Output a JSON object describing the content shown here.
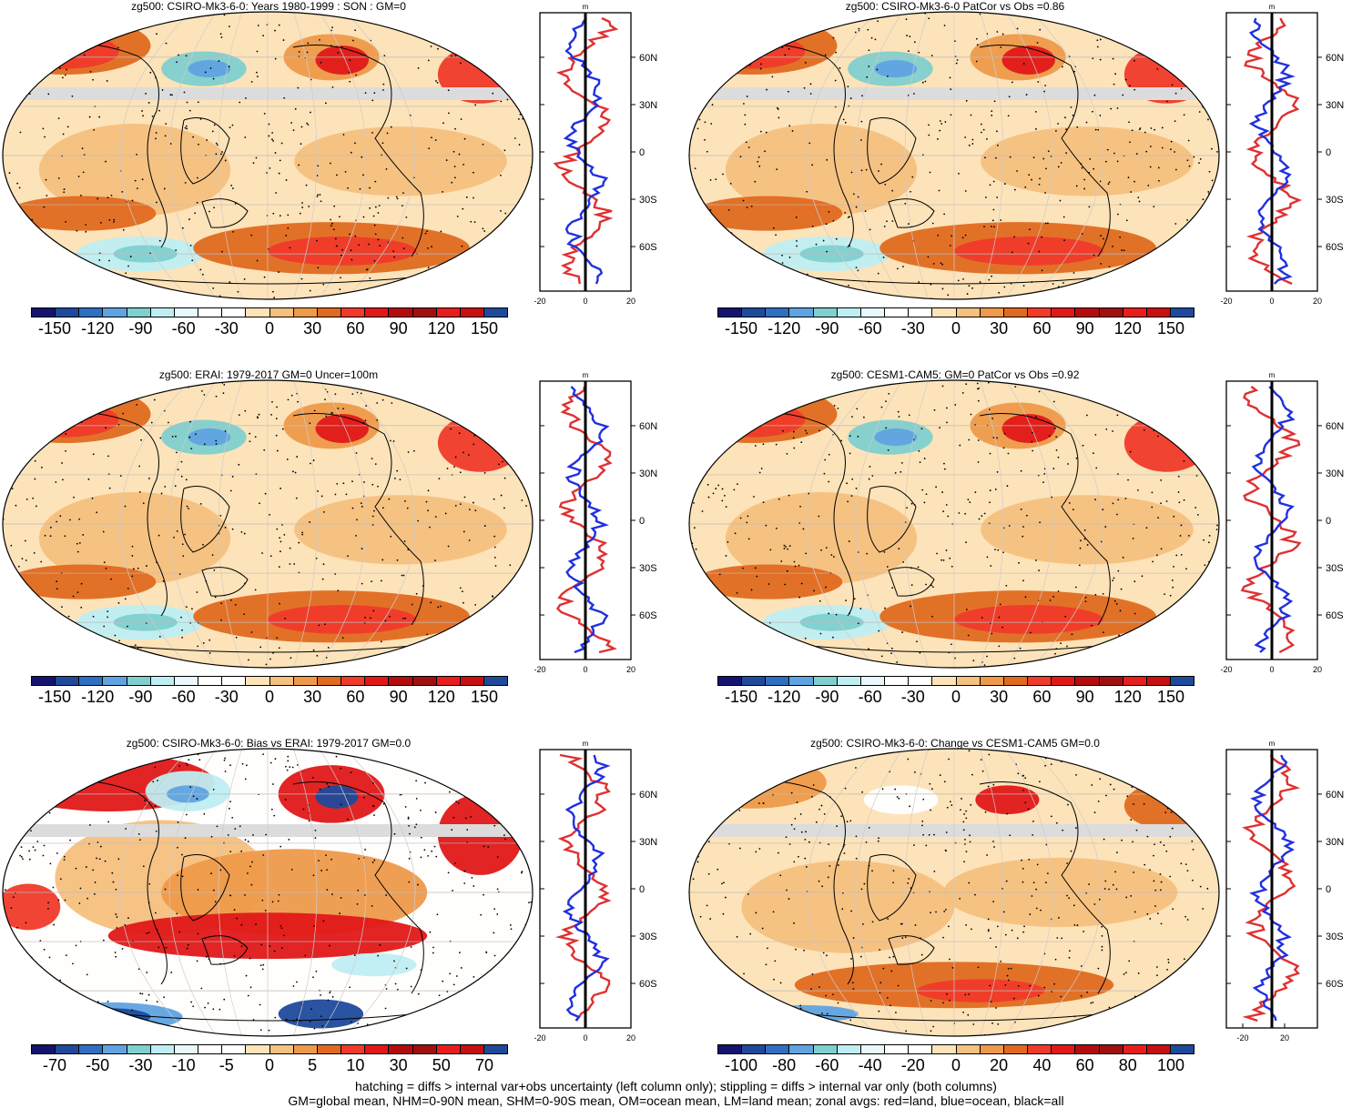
{
  "panels": [
    {
      "title": "zg500: CSIRO-Mk3-6-0: Years 1980-1999 : SON : GM=0",
      "cbar": [
        "-150",
        "-120",
        "-90",
        "-60",
        "-30",
        "0",
        "30",
        "60",
        "90",
        "120",
        "150"
      ],
      "zonal_x": [
        "-20",
        "0",
        "20"
      ],
      "style": "model",
      "unit": "m"
    },
    {
      "title": "zg500: CSIRO-Mk3-6-0 PatCor vs Obs =0.86",
      "cbar": [
        "-150",
        "-120",
        "-90",
        "-60",
        "-30",
        "0",
        "30",
        "60",
        "90",
        "120",
        "150"
      ],
      "zonal_x": [
        "-20",
        "0",
        "20"
      ],
      "style": "model",
      "unit": "m"
    },
    {
      "title": "zg500: ERAI: 1979-2017 GM=0 Uncer=100m",
      "cbar": [
        "-150",
        "-120",
        "-90",
        "-60",
        "-30",
        "0",
        "30",
        "60",
        "90",
        "120",
        "150"
      ],
      "zonal_x": [
        "-20",
        "0",
        "20"
      ],
      "style": "obs",
      "unit": "m"
    },
    {
      "title": "zg500: CESM1-CAM5: GM=0 PatCor vs Obs =0.92",
      "cbar": [
        "-150",
        "-120",
        "-90",
        "-60",
        "-30",
        "0",
        "30",
        "60",
        "90",
        "120",
        "150"
      ],
      "zonal_x": [
        "-20",
        "0",
        "20"
      ],
      "style": "obs",
      "unit": "m"
    },
    {
      "title": "zg500: CSIRO-Mk3-6-0: Bias vs ERAI: 1979-2017  GM=0.0",
      "cbar": [
        "-70",
        "-50",
        "-30",
        "-10",
        "-5",
        "0",
        "5",
        "10",
        "30",
        "50",
        "70"
      ],
      "zonal_x": [
        "-20",
        "0",
        "20"
      ],
      "style": "bias",
      "unit": "m"
    },
    {
      "title": "zg500: CSIRO-Mk3-6-0: Change vs CESM1-CAM5 GM=0.0",
      "cbar": [
        "-100",
        "-80",
        "-60",
        "-40",
        "-20",
        "0",
        "20",
        "40",
        "60",
        "80",
        "100"
      ],
      "zonal_x": [
        "-20",
        "20"
      ],
      "style": "change",
      "unit": "m"
    }
  ],
  "lat_labels": [
    "60N",
    "30N",
    "0",
    "30S",
    "60S"
  ],
  "colors": {
    "palette": [
      "#14146e",
      "#1f4a9c",
      "#2f6fc2",
      "#5fa3e0",
      "#7fcfcf",
      "#bfeef2",
      "#e8f8fb",
      "#ffffff",
      "#ffffff",
      "#fde3b8",
      "#f6c07e",
      "#ee9a4a",
      "#e06a20",
      "#f03a2a",
      "#e01818",
      "#b40c0c",
      "#a01010",
      "#e81e1e",
      "#c81010",
      "#1f4a9c"
    ],
    "land": "#e03030",
    "ocean": "#2030e0",
    "all": "#000000"
  },
  "footer": {
    "line1": "hatching = diffs > internal var+obs uncertainty (left column only); stippling = diffs > internal var only (both columns)",
    "line2": "GM=global mean, NHM=0-90N mean, SHM=0-90S mean, OM=ocean mean, LM=land mean; zonal avgs: red=land, blue=ocean, black=all"
  }
}
